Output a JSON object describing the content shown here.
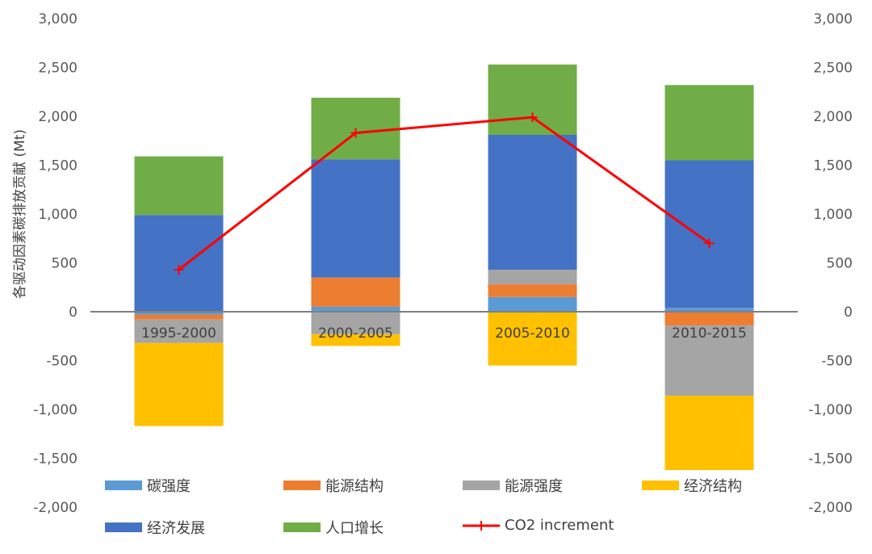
{
  "chart_data": {
    "type": "stacked-bar+line",
    "title": "",
    "ylabel": "各驱动因素碳排放贡献 (Mt)",
    "ylim": [
      -2000,
      3000
    ],
    "yticks": [
      3000,
      2500,
      2000,
      1500,
      1000,
      500,
      0,
      -500,
      -1000,
      -1500,
      -2000
    ],
    "ytick_labels": [
      "3,000",
      "2,500",
      "2,000",
      "1,500",
      "1,000",
      "500",
      "0",
      "-500",
      "-1,000",
      "-1,500",
      "-2,000"
    ],
    "categories": [
      "1995-2000",
      "2000-2005",
      "2005-2010",
      "2010-2015"
    ],
    "series": [
      {
        "name": "碳强度",
        "color": "#5B9BD5",
        "values": [
          -30,
          50,
          150,
          40
        ]
      },
      {
        "name": "能源结构",
        "color": "#ED7D31",
        "values": [
          -50,
          300,
          130,
          -140
        ]
      },
      {
        "name": "能源强度",
        "color": "#A5A5A5",
        "values": [
          -240,
          -230,
          150,
          -720
        ]
      },
      {
        "name": "经济结构",
        "color": "#FFC000",
        "values": [
          -850,
          -120,
          -550,
          -760
        ]
      },
      {
        "name": "经济发展",
        "color": "#4472C4",
        "values": [
          990,
          1210,
          1380,
          1510
        ]
      },
      {
        "name": "人口增长",
        "color": "#70AD47",
        "values": [
          600,
          630,
          720,
          770
        ]
      }
    ],
    "line": {
      "name": "CO2 increment",
      "color": "#FF0000",
      "values": [
        430,
        1830,
        1990,
        700
      ]
    },
    "legend": [
      "碳强度",
      "能源结构",
      "能源强度",
      "经济结构",
      "经济发展",
      "人口增长",
      "CO2 increment"
    ],
    "legend_position": "bottom"
  }
}
